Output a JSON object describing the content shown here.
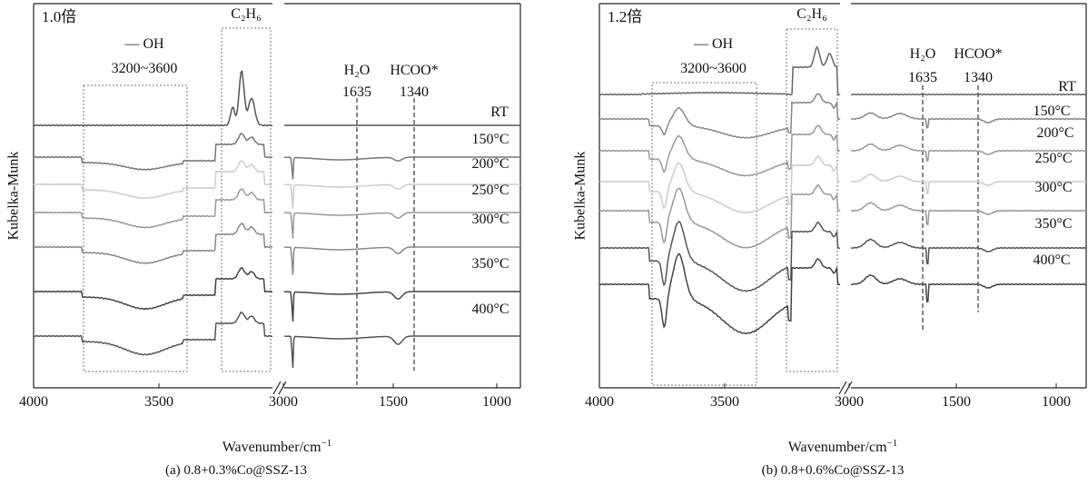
{
  "chart_data": [
    {
      "type": "line",
      "panel_tag": "1.0倍",
      "caption": "(a) 0.8+0.3%Co@SSZ-13",
      "xlabel": "Wavenumber/cm",
      "xlabel_sup": "−1",
      "ylabel": "Kubelka-Munk",
      "xticks": [
        "4000",
        "3500",
        "3000",
        "1500",
        "1000"
      ],
      "broken_axis": true,
      "x_ranges": [
        [
          4000,
          2800
        ],
        [
          1650,
          800
        ]
      ],
      "boxes": [
        {
          "name": "oh",
          "label_top": "— OH",
          "label_bottom": "3200~3600",
          "x_from": 3760,
          "x_to": 3255
        },
        {
          "name": "c2h6",
          "label": "C₂H₆",
          "x_from": 3085,
          "x_to": 2840
        }
      ],
      "markers": [
        {
          "name": "h2o",
          "label_top": "H₂O",
          "label_bottom": "1635",
          "x": 1635
        },
        {
          "name": "hcoo",
          "label_top": "HCOO*",
          "label_bottom": "1340",
          "x": 1340
        }
      ],
      "series": [
        {
          "name": "RT",
          "color": "#555555"
        },
        {
          "name": "150°C",
          "color": "#777777"
        },
        {
          "name": "200°C",
          "color": "#cccccc"
        },
        {
          "name": "250°C",
          "color": "#999999"
        },
        {
          "name": "300°C",
          "color": "#888888"
        },
        {
          "name": "350°C",
          "color": "#444444"
        },
        {
          "name": "400°C",
          "color": "#555555"
        }
      ]
    },
    {
      "type": "line",
      "panel_tag": "1.2倍",
      "caption": "(b) 0.8+0.6%Co@SSZ-13",
      "xlabel": "Wavenumber/cm",
      "xlabel_sup": "−1",
      "ylabel": "Kubelka-Munk",
      "xticks": [
        "4000",
        "3500",
        "3000",
        "1500",
        "1000"
      ],
      "broken_axis": true,
      "x_ranges": [
        [
          4000,
          2850
        ],
        [
          2000,
          800
        ]
      ],
      "boxes": [
        {
          "name": "oh",
          "label_top": "— OH",
          "label_bottom": "3200~3600",
          "x_from": 3760,
          "x_to": 3240
        },
        {
          "name": "c2h6",
          "label": "C₂H₆",
          "x_from": 3080,
          "x_to": 2865
        }
      ],
      "markers": [
        {
          "name": "h2o",
          "label_top": "H₂O",
          "label_bottom": "1635",
          "x": 1635
        },
        {
          "name": "hcoo",
          "label_top": "HCOO*",
          "label_bottom": "1340",
          "x": 1340
        }
      ],
      "series": [
        {
          "name": "RT",
          "color": "#666666"
        },
        {
          "name": "150°C",
          "color": "#888888"
        },
        {
          "name": "200°C",
          "color": "#999999"
        },
        {
          "name": "250°C",
          "color": "#cccccc"
        },
        {
          "name": "300°C",
          "color": "#999999"
        },
        {
          "name": "350°C",
          "color": "#555555"
        },
        {
          "name": "400°C",
          "color": "#444444"
        }
      ]
    }
  ]
}
